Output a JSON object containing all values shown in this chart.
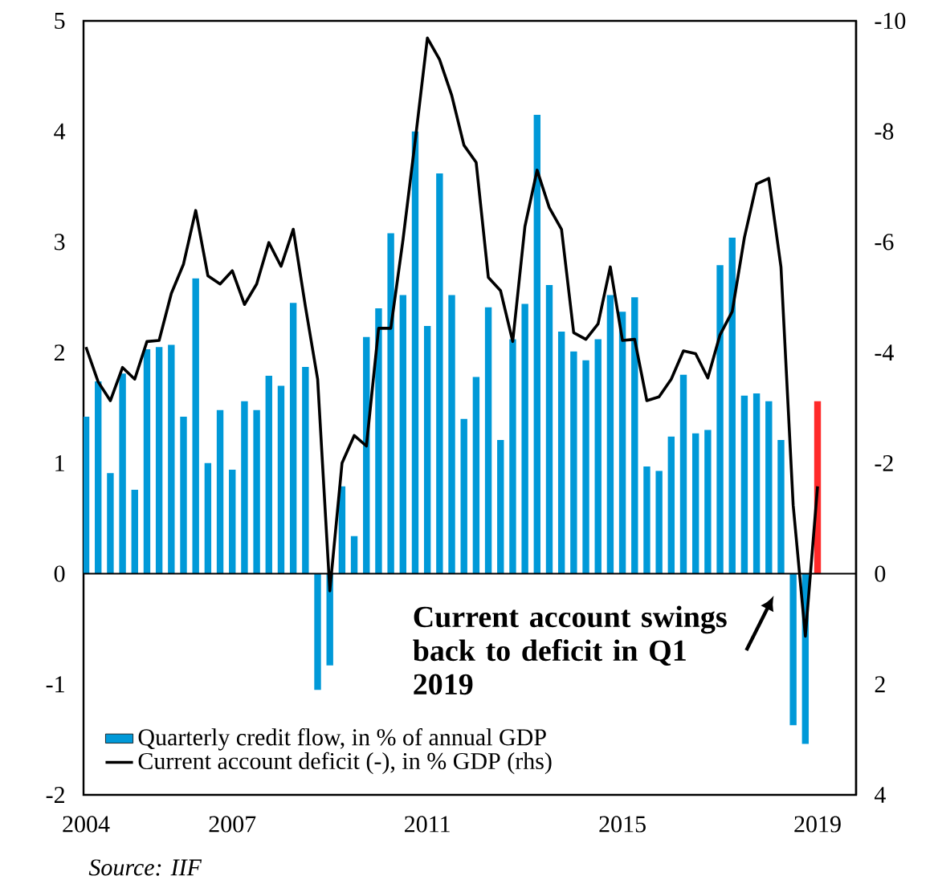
{
  "chart_data": {
    "type": "bar",
    "x": [
      2004,
      2004.25,
      2004.5,
      2004.75,
      2005,
      2005.25,
      2005.5,
      2005.75,
      2006,
      2006.25,
      2006.5,
      2006.75,
      2007,
      2007.25,
      2007.5,
      2007.75,
      2008,
      2008.25,
      2008.5,
      2008.75,
      2009,
      2009.25,
      2009.5,
      2009.75,
      2010,
      2010.25,
      2010.5,
      2010.75,
      2011,
      2011.25,
      2011.5,
      2011.75,
      2012,
      2012.25,
      2012.5,
      2012.75,
      2013,
      2013.25,
      2013.5,
      2013.75,
      2014,
      2014.25,
      2014.5,
      2014.75,
      2015,
      2015.25,
      2015.5,
      2015.75,
      2016,
      2016.25,
      2016.5,
      2016.75,
      2017,
      2017.25,
      2017.5,
      2017.75,
      2018,
      2018.25,
      2018.5,
      2018.75,
      2019
    ],
    "series": [
      {
        "name": "Quarterly credit flow, in % of annual GDP",
        "color": "#0099d8",
        "colors": [
          "#0099d8",
          "#0099d8",
          "#0099d8",
          "#0099d8",
          "#0099d8",
          "#0099d8",
          "#0099d8",
          "#0099d8",
          "#0099d8",
          "#0099d8",
          "#0099d8",
          "#0099d8",
          "#0099d8",
          "#0099d8",
          "#0099d8",
          "#0099d8",
          "#0099d8",
          "#0099d8",
          "#0099d8",
          "#0099d8",
          "#0099d8",
          "#0099d8",
          "#0099d8",
          "#0099d8",
          "#0099d8",
          "#0099d8",
          "#0099d8",
          "#0099d8",
          "#0099d8",
          "#0099d8",
          "#0099d8",
          "#0099d8",
          "#0099d8",
          "#0099d8",
          "#0099d8",
          "#0099d8",
          "#0099d8",
          "#0099d8",
          "#0099d8",
          "#0099d8",
          "#0099d8",
          "#0099d8",
          "#0099d8",
          "#0099d8",
          "#0099d8",
          "#0099d8",
          "#0099d8",
          "#0099d8",
          "#0099d8",
          "#0099d8",
          "#0099d8",
          "#0099d8",
          "#0099d8",
          "#0099d8",
          "#0099d8",
          "#0099d8",
          "#0099d8",
          "#0099d8",
          "#0099d8",
          "#0099d8",
          "#ff2a2a"
        ],
        "values": [
          1.42,
          1.74,
          0.91,
          1.81,
          0.76,
          2.03,
          2.05,
          2.07,
          1.42,
          2.67,
          1.0,
          1.48,
          0.94,
          1.56,
          1.48,
          1.79,
          1.7,
          2.45,
          1.87,
          -1.05,
          -0.83,
          0.79,
          0.34,
          2.14,
          2.4,
          3.08,
          2.52,
          4.0,
          2.24,
          3.62,
          2.52,
          1.4,
          1.78,
          2.41,
          1.21,
          2.12,
          2.44,
          4.15,
          2.61,
          2.19,
          2.01,
          1.93,
          2.12,
          2.52,
          2.37,
          2.5,
          0.97,
          0.93,
          1.24,
          1.8,
          1.27,
          1.3,
          2.79,
          3.04,
          1.61,
          1.63,
          1.56,
          1.21,
          -1.37,
          -1.54,
          1.56
        ]
      },
      {
        "name": "Current account deficit (-), in % GDP (rhs)",
        "type": "line",
        "axis": "y2",
        "color": "#000000",
        "values": [
          -4.1,
          -3.47,
          -3.13,
          -3.73,
          -3.52,
          -4.2,
          -4.22,
          -5.07,
          -5.6,
          -6.57,
          -5.39,
          -5.24,
          -5.48,
          -4.87,
          -5.24,
          -5.99,
          -5.56,
          -6.23,
          -4.83,
          -3.52,
          0.31,
          -2.0,
          -2.5,
          -2.31,
          -4.44,
          -4.44,
          -6.04,
          -7.83,
          -9.69,
          -9.3,
          -8.65,
          -7.75,
          -7.44,
          -5.36,
          -5.12,
          -4.2,
          -6.28,
          -7.3,
          -6.62,
          -6.23,
          -4.36,
          -4.24,
          -4.52,
          -5.55,
          -4.22,
          -4.24,
          -3.13,
          -3.2,
          -3.52,
          -4.03,
          -3.98,
          -3.54,
          -4.32,
          -4.74,
          -6.08,
          -7.05,
          -7.15,
          -5.55,
          -1.24,
          1.13,
          -1.58
        ]
      }
    ],
    "xlim": [
      2003.95,
      2019.79
    ],
    "xticks": [
      2004,
      2007,
      2011,
      2015,
      2019
    ],
    "ylim": [
      -2,
      5
    ],
    "yticks": [
      -2,
      -1,
      0,
      1,
      2,
      3,
      4,
      5
    ],
    "y2lim": [
      4,
      -10
    ],
    "y2ticks": [
      -10,
      -8,
      -6,
      -4,
      -2,
      0,
      2,
      4
    ],
    "ref_lines": [
      {
        "axis": "y",
        "value": 0,
        "color": "#000000"
      }
    ],
    "legend": "bottom left",
    "grid": false,
    "annotations": [
      "Current account swings back to deficit in Q1 2019",
      "*Source: IIF*"
    ]
  }
}
